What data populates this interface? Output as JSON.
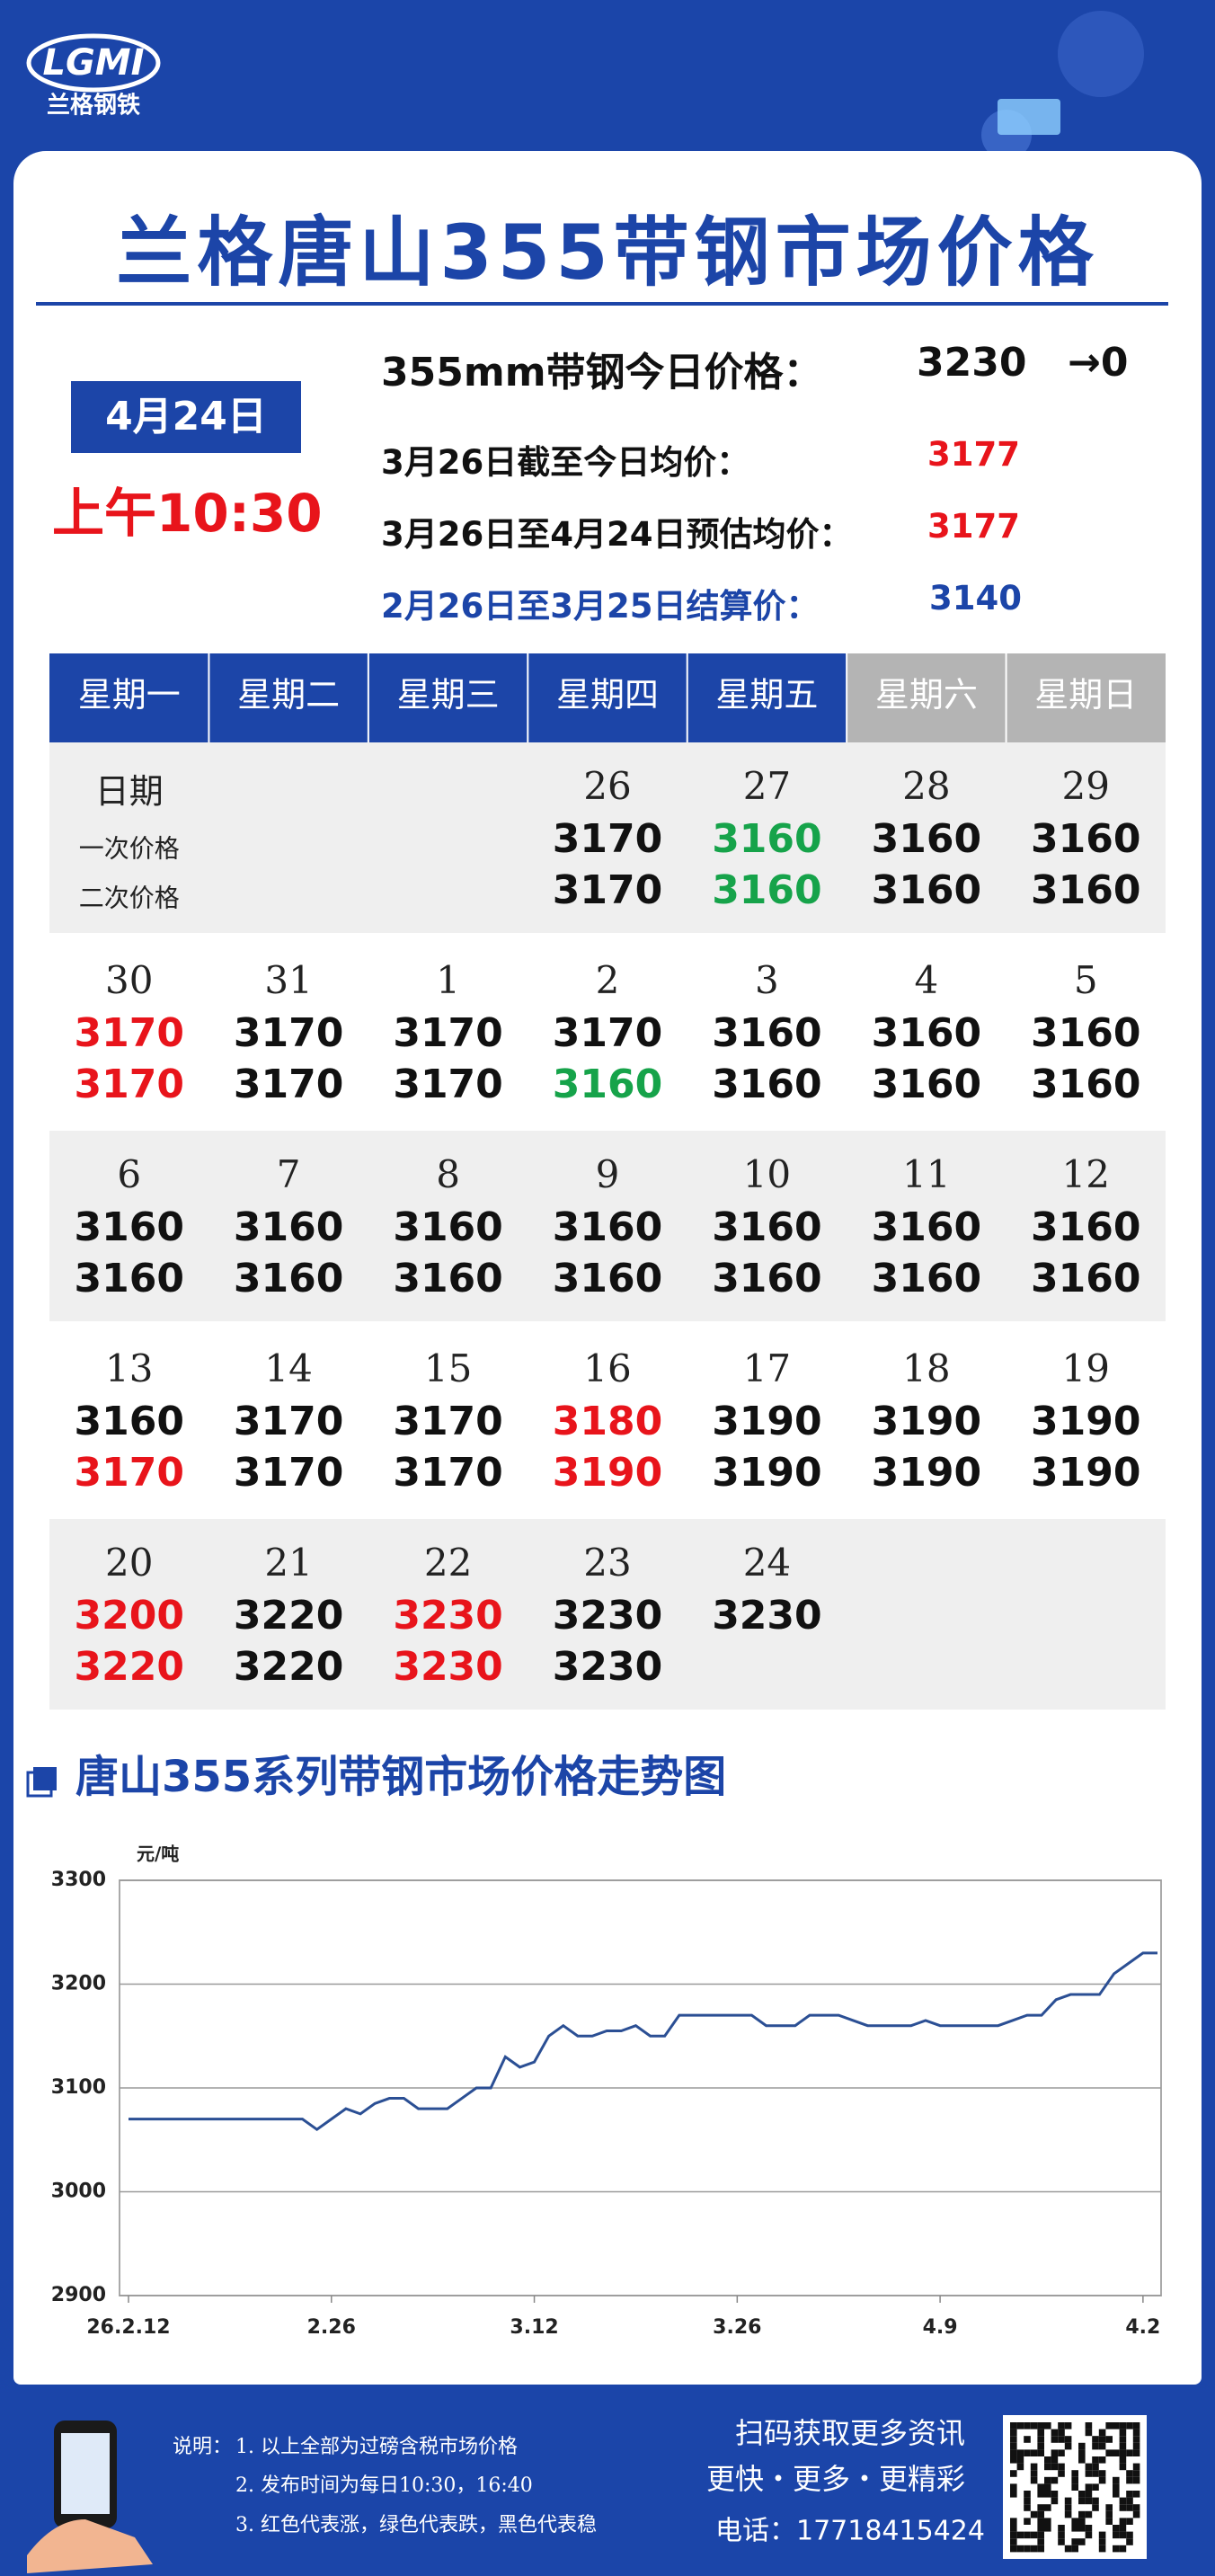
{
  "header": {
    "logo": "LGMI",
    "brand": "兰格钢铁"
  },
  "title": "兰格唐山355带钢市场价格",
  "date": "4月24日",
  "time": "上午10:30",
  "prices": [
    {
      "label": "355mm带钢今日价格：",
      "value": 3230,
      "change": "→0",
      "color": "#111111"
    },
    {
      "label": "3月26日截至今日均价：",
      "value": 3177,
      "color": "#e8141b"
    },
    {
      "label": "3月26日至4月24日预估均价：",
      "value": 3177,
      "color": "#e8141b"
    },
    {
      "label": "2月26日至3月25日结算价：",
      "value": 3140,
      "color": "#1c45a8"
    }
  ],
  "calendar": {
    "weekdays": [
      "星期一",
      "星期二",
      "星期三",
      "星期四",
      "星期五",
      "星期六",
      "星期日"
    ],
    "row_labels": [
      "日期",
      "一次价格",
      "二次价格"
    ],
    "weeks": [
      [
        null,
        null,
        null,
        {
          "day": 26,
          "prices": [
            3170,
            3170
          ],
          "colors": [
            "#111111",
            "#111111"
          ]
        },
        {
          "day": 27,
          "prices": [
            3160,
            3160
          ],
          "colors": [
            "#16a34a",
            "#16a34a"
          ]
        },
        {
          "day": 28,
          "prices": [
            3160,
            3160
          ],
          "colors": [
            "#111111",
            "#111111"
          ]
        },
        {
          "day": 29,
          "prices": [
            3160,
            3160
          ],
          "colors": [
            "#111111",
            "#111111"
          ]
        }
      ],
      [
        {
          "day": 30,
          "prices": [
            3170,
            3170
          ],
          "colors": [
            "#e8141b",
            "#e8141b"
          ]
        },
        {
          "day": 31,
          "prices": [
            3170,
            3170
          ],
          "colors": [
            "#111111",
            "#111111"
          ]
        },
        {
          "day": 1,
          "prices": [
            3170,
            3170
          ],
          "colors": [
            "#111111",
            "#111111"
          ]
        },
        {
          "day": 2,
          "prices": [
            3170,
            3160
          ],
          "colors": [
            "#111111",
            "#16a34a"
          ]
        },
        {
          "day": 3,
          "prices": [
            3160,
            3160
          ],
          "colors": [
            "#111111",
            "#111111"
          ]
        },
        {
          "day": 4,
          "prices": [
            3160,
            3160
          ],
          "colors": [
            "#111111",
            "#111111"
          ]
        },
        {
          "day": 5,
          "prices": [
            3160,
            3160
          ],
          "colors": [
            "#111111",
            "#111111"
          ]
        }
      ],
      [
        {
          "day": 6,
          "prices": [
            3160,
            3160
          ],
          "colors": [
            "#111111",
            "#111111"
          ]
        },
        {
          "day": 7,
          "prices": [
            3160,
            3160
          ],
          "colors": [
            "#111111",
            "#111111"
          ]
        },
        {
          "day": 8,
          "prices": [
            3160,
            3160
          ],
          "colors": [
            "#111111",
            "#111111"
          ]
        },
        {
          "day": 9,
          "prices": [
            3160,
            3160
          ],
          "colors": [
            "#111111",
            "#111111"
          ]
        },
        {
          "day": 10,
          "prices": [
            3160,
            3160
          ],
          "colors": [
            "#111111",
            "#111111"
          ]
        },
        {
          "day": 11,
          "prices": [
            3160,
            3160
          ],
          "colors": [
            "#111111",
            "#111111"
          ]
        },
        {
          "day": 12,
          "prices": [
            3160,
            3160
          ],
          "colors": [
            "#111111",
            "#111111"
          ]
        }
      ],
      [
        {
          "day": 13,
          "prices": [
            3160,
            3170
          ],
          "colors": [
            "#111111",
            "#e8141b"
          ]
        },
        {
          "day": 14,
          "prices": [
            3170,
            3170
          ],
          "colors": [
            "#111111",
            "#111111"
          ]
        },
        {
          "day": 15,
          "prices": [
            3170,
            3170
          ],
          "colors": [
            "#111111",
            "#111111"
          ]
        },
        {
          "day": 16,
          "prices": [
            3180,
            3190
          ],
          "colors": [
            "#e8141b",
            "#e8141b"
          ]
        },
        {
          "day": 17,
          "prices": [
            3190,
            3190
          ],
          "colors": [
            "#111111",
            "#111111"
          ]
        },
        {
          "day": 18,
          "prices": [
            3190,
            3190
          ],
          "colors": [
            "#111111",
            "#111111"
          ]
        },
        {
          "day": 19,
          "prices": [
            3190,
            3190
          ],
          "colors": [
            "#111111",
            "#111111"
          ]
        }
      ],
      [
        {
          "day": 20,
          "prices": [
            3200,
            3220
          ],
          "colors": [
            "#e8141b",
            "#e8141b"
          ]
        },
        {
          "day": 21,
          "prices": [
            3220,
            3220
          ],
          "colors": [
            "#111111",
            "#111111"
          ]
        },
        {
          "day": 22,
          "prices": [
            3230,
            3230
          ],
          "colors": [
            "#e8141b",
            "#e8141b"
          ]
        },
        {
          "day": 23,
          "prices": [
            3230,
            3230
          ],
          "colors": [
            "#111111",
            "#111111"
          ]
        },
        {
          "day": 24,
          "prices": [
            3230
          ],
          "colors": [
            "#111111"
          ]
        },
        null,
        null
      ]
    ]
  },
  "chart_data": {
    "type": "line",
    "title": "唐山355系列带钢市场价格走势图",
    "y_label": "元/吨",
    "categories": [
      "26.2.12",
      null,
      null,
      null,
      null,
      null,
      null,
      null,
      null,
      null,
      null,
      null,
      null,
      null,
      "2.26",
      null,
      null,
      null,
      null,
      null,
      null,
      null,
      null,
      null,
      null,
      null,
      null,
      null,
      "3.12",
      null,
      null,
      null,
      null,
      null,
      null,
      null,
      null,
      null,
      null,
      null,
      null,
      null,
      "3.26",
      null,
      null,
      null,
      null,
      null,
      null,
      null,
      null,
      null,
      null,
      null,
      null,
      null,
      "4.9",
      null,
      null,
      null,
      null,
      null,
      null,
      null,
      null,
      null,
      null,
      null,
      null,
      null,
      "4.2",
      null
    ],
    "values": [
      3070,
      3070,
      3070,
      3070,
      3070,
      3070,
      3070,
      3070,
      3070,
      3070,
      3070,
      3070,
      3070,
      3060,
      3070,
      3080,
      3075,
      3085,
      3090,
      3090,
      3080,
      3080,
      3080,
      3090,
      3100,
      3100,
      3130,
      3120,
      3125,
      3150,
      3160,
      3150,
      3150,
      3155,
      3155,
      3160,
      3150,
      3150,
      3170,
      3170,
      3170,
      3170,
      3170,
      3170,
      3160,
      3160,
      3160,
      3170,
      3170,
      3170,
      3165,
      3160,
      3160,
      3160,
      3160,
      3165,
      3160,
      3160,
      3160,
      3160,
      3160,
      3165,
      3170,
      3170,
      3185,
      3190,
      3190,
      3190,
      3210,
      3220,
      3230,
      3230
    ],
    "color": "#2b4f94",
    "ylim": [
      2900,
      3300
    ],
    "yticks": [
      2900,
      3000,
      3100,
      3200,
      3300
    ],
    "grid": true
  },
  "footer": {
    "notes_label": "说明：",
    "notes": [
      "1. 以上全部为过磅含税市场价格",
      "2. 发布时间为每日10:30，16:40",
      "3. 红色代表涨，绿色代表跌，黑色代表稳"
    ],
    "qr_text": "扫码获取更多资讯",
    "slogan": "更快・更多・更精彩",
    "phone": "电话：17718415424"
  }
}
